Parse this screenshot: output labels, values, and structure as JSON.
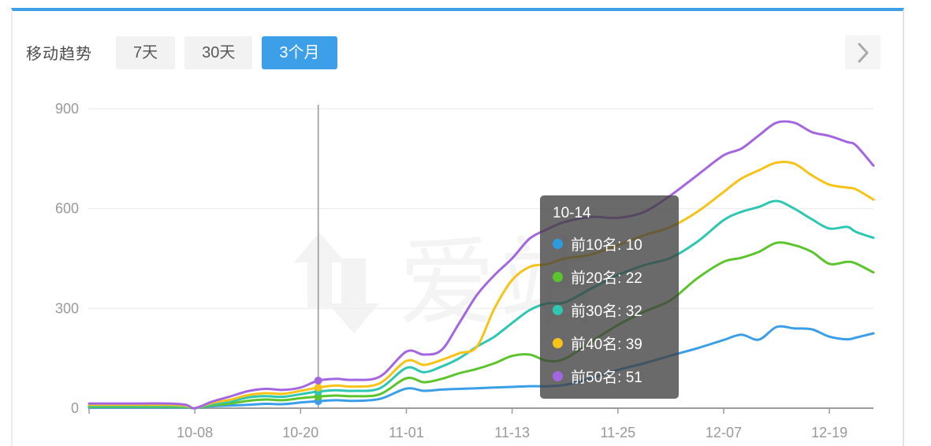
{
  "header": {
    "title": "移动趋势",
    "tabs": [
      {
        "label": "7天",
        "active": false
      },
      {
        "label": "30天",
        "active": false
      },
      {
        "label": "3个月",
        "active": true
      }
    ],
    "active_tab_color": "#3D9FE8",
    "accent_bar_color": "#3D9FE8"
  },
  "next_button": {
    "glyph": "chevron-right"
  },
  "watermark": {
    "text": "爱站"
  },
  "tooltip": {
    "date": "10-14",
    "items": [
      {
        "label": "前10名",
        "value": "10",
        "color": "#2E9BE0"
      },
      {
        "label": "前20名",
        "value": "22",
        "color": "#5CC42D"
      },
      {
        "label": "前30名",
        "value": "32",
        "color": "#2EC7B2"
      },
      {
        "label": "前40名",
        "value": "39",
        "color": "#F7C319"
      },
      {
        "label": "前50名",
        "value": "51",
        "color": "#A466E0"
      }
    ]
  },
  "chart_data": {
    "type": "line",
    "title": "移动趋势 (3个月)",
    "xlabel": "",
    "ylabel": "",
    "grid": true,
    "legend_position": "none",
    "y_axis": {
      "min": 0,
      "max": 900,
      "ticks": [
        0,
        300,
        600,
        900
      ]
    },
    "x_axis": {
      "start_date": "09-26",
      "end_day_index": 89,
      "tick_labels": [
        "10-08",
        "10-20",
        "11-01",
        "11-13",
        "11-25",
        "12-07",
        "12-19"
      ],
      "tick_day_indices": [
        12,
        24,
        36,
        48,
        60,
        72,
        84
      ]
    },
    "marker": {
      "day_index": 26,
      "values": {
        "前10名": 21,
        "前20名": 35,
        "前30名": 50,
        "前40名": 62,
        "前50名": 83
      }
    },
    "series": [
      {
        "name": "前10名",
        "color": "#3B9FE8",
        "points": [
          [
            0,
            2
          ],
          [
            3,
            2
          ],
          [
            6,
            2
          ],
          [
            9,
            2
          ],
          [
            11,
            2
          ],
          [
            12,
            0
          ],
          [
            14,
            6
          ],
          [
            16,
            8
          ],
          [
            18,
            10
          ],
          [
            20,
            13
          ],
          [
            22,
            12
          ],
          [
            24,
            17
          ],
          [
            26,
            21
          ],
          [
            28,
            24
          ],
          [
            30,
            22
          ],
          [
            33,
            28
          ],
          [
            36,
            59
          ],
          [
            38,
            52
          ],
          [
            40,
            56
          ],
          [
            42,
            58
          ],
          [
            44,
            60
          ],
          [
            46,
            62
          ],
          [
            48,
            64
          ],
          [
            50,
            66
          ],
          [
            52,
            66
          ],
          [
            54,
            70
          ],
          [
            57,
            90
          ],
          [
            60,
            115
          ],
          [
            63,
            135
          ],
          [
            66,
            158
          ],
          [
            69,
            180
          ],
          [
            72,
            205
          ],
          [
            74,
            221
          ],
          [
            76,
            206
          ],
          [
            78,
            244
          ],
          [
            80,
            240
          ],
          [
            82,
            237
          ],
          [
            84,
            215
          ],
          [
            86,
            207
          ],
          [
            87,
            212
          ],
          [
            89,
            225
          ]
        ]
      },
      {
        "name": "前20名",
        "color": "#5CC42D",
        "points": [
          [
            0,
            4
          ],
          [
            3,
            4
          ],
          [
            6,
            4
          ],
          [
            9,
            4
          ],
          [
            11,
            3
          ],
          [
            12,
            0
          ],
          [
            14,
            9
          ],
          [
            16,
            14
          ],
          [
            18,
            22
          ],
          [
            20,
            26
          ],
          [
            22,
            24
          ],
          [
            24,
            30
          ],
          [
            26,
            35
          ],
          [
            28,
            38
          ],
          [
            30,
            36
          ],
          [
            33,
            42
          ],
          [
            36,
            90
          ],
          [
            38,
            78
          ],
          [
            40,
            88
          ],
          [
            42,
            105
          ],
          [
            44,
            118
          ],
          [
            46,
            135
          ],
          [
            48,
            157
          ],
          [
            50,
            161
          ],
          [
            52,
            142
          ],
          [
            54,
            149
          ],
          [
            57,
            200
          ],
          [
            60,
            250
          ],
          [
            63,
            290
          ],
          [
            66,
            325
          ],
          [
            69,
            390
          ],
          [
            72,
            440
          ],
          [
            74,
            452
          ],
          [
            76,
            470
          ],
          [
            78,
            497
          ],
          [
            80,
            490
          ],
          [
            82,
            470
          ],
          [
            84,
            434
          ],
          [
            86,
            440
          ],
          [
            87,
            435
          ],
          [
            89,
            408
          ]
        ]
      },
      {
        "name": "前30名",
        "color": "#2EC7B2",
        "points": [
          [
            0,
            7
          ],
          [
            3,
            7
          ],
          [
            6,
            7
          ],
          [
            9,
            7
          ],
          [
            11,
            5
          ],
          [
            12,
            0
          ],
          [
            14,
            13
          ],
          [
            16,
            20
          ],
          [
            18,
            32
          ],
          [
            20,
            36
          ],
          [
            22,
            34
          ],
          [
            24,
            42
          ],
          [
            26,
            50
          ],
          [
            28,
            54
          ],
          [
            30,
            52
          ],
          [
            33,
            60
          ],
          [
            36,
            121
          ],
          [
            38,
            108
          ],
          [
            40,
            125
          ],
          [
            42,
            150
          ],
          [
            44,
            185
          ],
          [
            46,
            215
          ],
          [
            48,
            256
          ],
          [
            50,
            295
          ],
          [
            52,
            315
          ],
          [
            54,
            318
          ],
          [
            57,
            360
          ],
          [
            60,
            400
          ],
          [
            63,
            430
          ],
          [
            66,
            452
          ],
          [
            69,
            500
          ],
          [
            72,
            565
          ],
          [
            74,
            590
          ],
          [
            76,
            605
          ],
          [
            78,
            623
          ],
          [
            80,
            600
          ],
          [
            82,
            568
          ],
          [
            84,
            540
          ],
          [
            86,
            545
          ],
          [
            87,
            530
          ],
          [
            89,
            512
          ]
        ]
      },
      {
        "name": "前40名",
        "color": "#F7C319",
        "points": [
          [
            0,
            10
          ],
          [
            3,
            10
          ],
          [
            6,
            10
          ],
          [
            9,
            10
          ],
          [
            11,
            7
          ],
          [
            12,
            0
          ],
          [
            14,
            16
          ],
          [
            16,
            25
          ],
          [
            18,
            39
          ],
          [
            20,
            45
          ],
          [
            22,
            43
          ],
          [
            24,
            52
          ],
          [
            26,
            62
          ],
          [
            28,
            68
          ],
          [
            30,
            65
          ],
          [
            33,
            75
          ],
          [
            36,
            142
          ],
          [
            38,
            130
          ],
          [
            40,
            145
          ],
          [
            42,
            165
          ],
          [
            44,
            185
          ],
          [
            46,
            300
          ],
          [
            48,
            385
          ],
          [
            50,
            425
          ],
          [
            52,
            433
          ],
          [
            54,
            450
          ],
          [
            57,
            462
          ],
          [
            60,
            490
          ],
          [
            63,
            520
          ],
          [
            66,
            545
          ],
          [
            69,
            590
          ],
          [
            72,
            650
          ],
          [
            74,
            690
          ],
          [
            76,
            715
          ],
          [
            78,
            738
          ],
          [
            80,
            735
          ],
          [
            82,
            700
          ],
          [
            84,
            672
          ],
          [
            86,
            663
          ],
          [
            87,
            658
          ],
          [
            89,
            627
          ]
        ]
      },
      {
        "name": "前50名",
        "color": "#A466E0",
        "points": [
          [
            0,
            14
          ],
          [
            3,
            14
          ],
          [
            6,
            14
          ],
          [
            9,
            14
          ],
          [
            11,
            10
          ],
          [
            12,
            0
          ],
          [
            14,
            20
          ],
          [
            16,
            35
          ],
          [
            18,
            51
          ],
          [
            20,
            58
          ],
          [
            22,
            55
          ],
          [
            24,
            62
          ],
          [
            26,
            83
          ],
          [
            28,
            88
          ],
          [
            30,
            85
          ],
          [
            33,
            95
          ],
          [
            36,
            170
          ],
          [
            38,
            161
          ],
          [
            40,
            175
          ],
          [
            42,
            256
          ],
          [
            44,
            340
          ],
          [
            46,
            400
          ],
          [
            48,
            450
          ],
          [
            50,
            510
          ],
          [
            52,
            538
          ],
          [
            54,
            560
          ],
          [
            57,
            575
          ],
          [
            60,
            572
          ],
          [
            63,
            590
          ],
          [
            66,
            640
          ],
          [
            69,
            700
          ],
          [
            72,
            760
          ],
          [
            74,
            780
          ],
          [
            76,
            820
          ],
          [
            78,
            858
          ],
          [
            80,
            858
          ],
          [
            82,
            830
          ],
          [
            84,
            818
          ],
          [
            86,
            800
          ],
          [
            87,
            790
          ],
          [
            89,
            729
          ]
        ]
      }
    ]
  }
}
